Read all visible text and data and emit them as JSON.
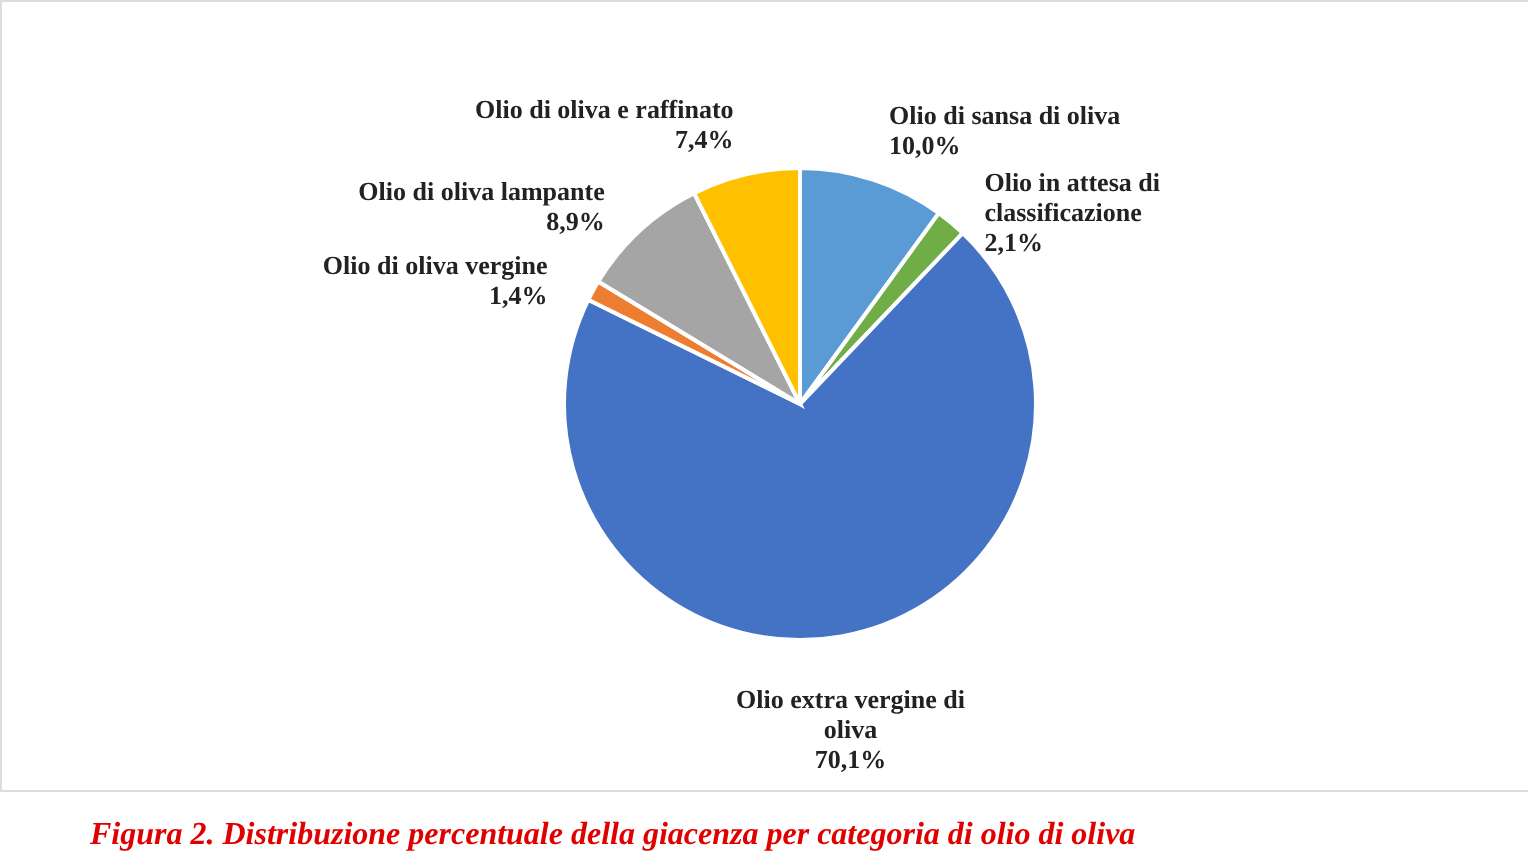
{
  "chart_data": {
    "type": "pie",
    "title": "Figura 2. Distribuzione percentuale della giacenza per categoria di olio di oliva",
    "categories": [
      "Olio di sansa di oliva",
      "Olio in attesa di classificazione",
      "Olio extra vergine di oliva",
      "Olio di oliva vergine",
      "Olio di oliva lampante",
      "Olio di oliva e raffinato"
    ],
    "values": [
      10.0,
      2.1,
      70.1,
      1.4,
      8.9,
      7.4
    ],
    "colors": [
      "#5b9bd5",
      "#70ad47",
      "#4472c4",
      "#ed7d31",
      "#a5a5a5",
      "#ffc000"
    ],
    "value_labels": [
      "10,0%",
      "2,1%",
      "70,1%",
      "1,4%",
      "8,9%",
      "7,4%"
    ]
  }
}
